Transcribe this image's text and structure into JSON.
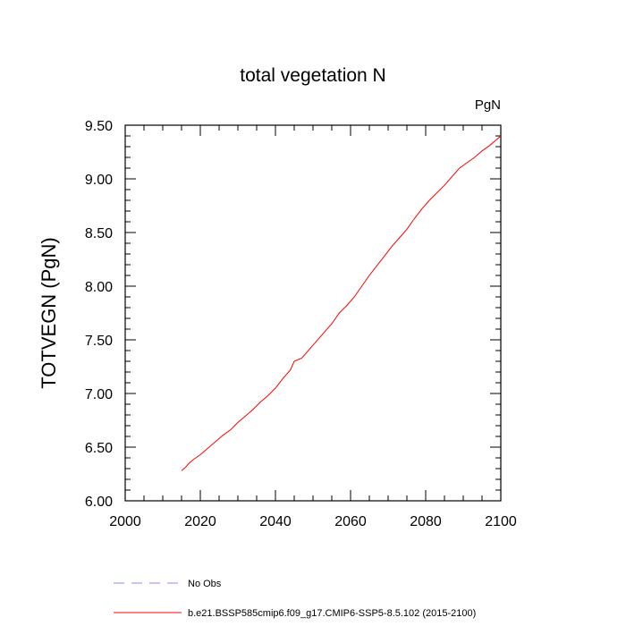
{
  "chart_data": {
    "type": "line",
    "title": "total vegetation N",
    "units_label": "PgN",
    "ylabel": "TOTVEGN  (PgN)",
    "xlabel": "",
    "xlim": [
      2000,
      2100
    ],
    "ylim": [
      6.0,
      9.5
    ],
    "x_ticks": [
      2000,
      2020,
      2040,
      2060,
      2080,
      2100
    ],
    "x_tick_labels": [
      "2000",
      "2020",
      "2040",
      "2060",
      "2080",
      "2100"
    ],
    "y_ticks": [
      6.0,
      6.5,
      7.0,
      7.5,
      8.0,
      8.5,
      9.0,
      9.5
    ],
    "y_tick_labels": [
      "6.00",
      "6.50",
      "7.00",
      "7.50",
      "8.00",
      "8.50",
      "9.00",
      "9.50"
    ],
    "grid": false,
    "legend_position": "bottom",
    "series": [
      {
        "name": "b.e21.BSSP585cmip6.f09_g17.CMIP6-SSP5-8.5.102 (2015-2100)",
        "color": "#ff0000",
        "style": "solid",
        "x": [
          2015,
          2016,
          2017,
          2018,
          2020,
          2022,
          2024,
          2026,
          2028,
          2030,
          2032,
          2034,
          2036,
          2038,
          2040,
          2042,
          2044,
          2045,
          2047,
          2049,
          2051,
          2053,
          2055,
          2057,
          2059,
          2061,
          2063,
          2065,
          2067,
          2069,
          2071,
          2073,
          2075,
          2077,
          2079,
          2081,
          2083,
          2085,
          2087,
          2089,
          2091,
          2093,
          2095,
          2097,
          2099,
          2100
        ],
        "y": [
          6.28,
          6.31,
          6.35,
          6.38,
          6.43,
          6.49,
          6.55,
          6.61,
          6.66,
          6.73,
          6.79,
          6.85,
          6.92,
          6.98,
          7.05,
          7.14,
          7.22,
          7.3,
          7.33,
          7.41,
          7.49,
          7.57,
          7.65,
          7.75,
          7.82,
          7.9,
          8.0,
          8.1,
          8.19,
          8.28,
          8.37,
          8.45,
          8.53,
          8.63,
          8.72,
          8.8,
          8.87,
          8.94,
          9.02,
          9.1,
          9.15,
          9.2,
          9.26,
          9.31,
          9.37,
          9.4
        ]
      },
      {
        "name": "No Obs",
        "color": "#8888ff",
        "style": "dashed",
        "x": [],
        "y": []
      }
    ]
  }
}
